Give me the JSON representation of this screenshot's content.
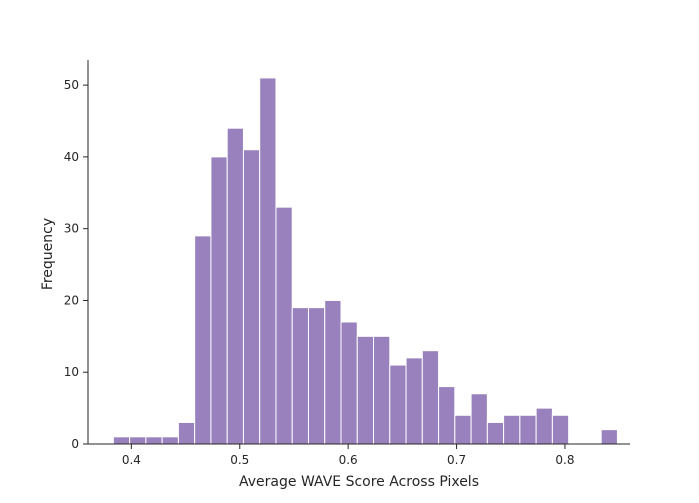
{
  "chart_data": {
    "type": "bar",
    "xlabel": "Average WAVE Score Across Pixels",
    "ylabel": "Frequency",
    "xlim": [
      0.36,
      0.86
    ],
    "ylim": [
      0,
      53.5
    ],
    "x_ticks": [
      0.4,
      0.5,
      0.6,
      0.7,
      0.8
    ],
    "x_tick_labels": [
      "0.4",
      "0.5",
      "0.6",
      "0.7",
      "0.8"
    ],
    "y_ticks": [
      0,
      10,
      20,
      30,
      40,
      50
    ],
    "y_tick_labels": [
      "0",
      "10",
      "20",
      "30",
      "40",
      "50"
    ],
    "grid": false,
    "bar_color": "#9881bc",
    "bins": [
      {
        "x0": 0.3834,
        "x1": 0.3984,
        "value": 1
      },
      {
        "x0": 0.3984,
        "x1": 0.4134,
        "value": 1
      },
      {
        "x0": 0.4134,
        "x1": 0.4284,
        "value": 1
      },
      {
        "x0": 0.4284,
        "x1": 0.4434,
        "value": 1
      },
      {
        "x0": 0.4434,
        "x1": 0.4584,
        "value": 3
      },
      {
        "x0": 0.4584,
        "x1": 0.4734,
        "value": 29
      },
      {
        "x0": 0.4734,
        "x1": 0.4884,
        "value": 40
      },
      {
        "x0": 0.4884,
        "x1": 0.5034,
        "value": 44
      },
      {
        "x0": 0.5034,
        "x1": 0.5184,
        "value": 41
      },
      {
        "x0": 0.5184,
        "x1": 0.5334,
        "value": 51
      },
      {
        "x0": 0.5334,
        "x1": 0.5484,
        "value": 33
      },
      {
        "x0": 0.5484,
        "x1": 0.5634,
        "value": 19
      },
      {
        "x0": 0.5634,
        "x1": 0.5784,
        "value": 19
      },
      {
        "x0": 0.5784,
        "x1": 0.5934,
        "value": 20
      },
      {
        "x0": 0.5934,
        "x1": 0.6084,
        "value": 17
      },
      {
        "x0": 0.6084,
        "x1": 0.6234,
        "value": 15
      },
      {
        "x0": 0.6234,
        "x1": 0.6384,
        "value": 15
      },
      {
        "x0": 0.6384,
        "x1": 0.6534,
        "value": 11
      },
      {
        "x0": 0.6534,
        "x1": 0.6684,
        "value": 12
      },
      {
        "x0": 0.6684,
        "x1": 0.6834,
        "value": 13
      },
      {
        "x0": 0.6834,
        "x1": 0.6984,
        "value": 8
      },
      {
        "x0": 0.6984,
        "x1": 0.7134,
        "value": 4
      },
      {
        "x0": 0.7134,
        "x1": 0.7284,
        "value": 7
      },
      {
        "x0": 0.7284,
        "x1": 0.7434,
        "value": 3
      },
      {
        "x0": 0.7434,
        "x1": 0.7584,
        "value": 4
      },
      {
        "x0": 0.7584,
        "x1": 0.7734,
        "value": 4
      },
      {
        "x0": 0.7734,
        "x1": 0.7884,
        "value": 5
      },
      {
        "x0": 0.7884,
        "x1": 0.8034,
        "value": 4
      },
      {
        "x0": 0.8034,
        "x1": 0.8184,
        "value": 0
      },
      {
        "x0": 0.8184,
        "x1": 0.8334,
        "value": 0
      },
      {
        "x0": 0.8334,
        "x1": 0.8484,
        "value": 2
      }
    ]
  }
}
